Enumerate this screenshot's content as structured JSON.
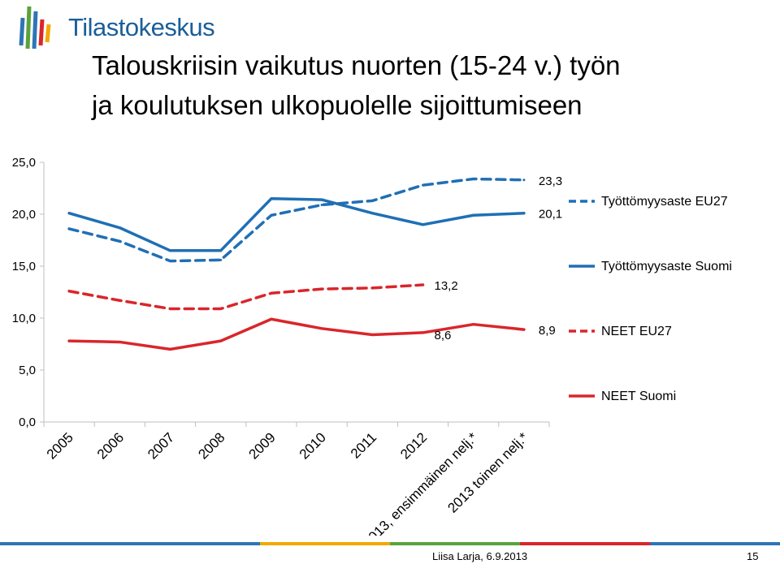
{
  "logo": {
    "text": "Tilastokeskus"
  },
  "title": {
    "line1": "Talouskriisin vaikutus nuorten (15-24 v.) työn",
    "line2": "ja koulutuksen ulkopuolelle sijoittumiseen"
  },
  "footer": {
    "author": "Liisa Larja, 6.9.2013",
    "page": "15"
  },
  "colors": {
    "blue": "#1f6fb5",
    "red": "#d9262b",
    "footer_bar": [
      "#2e75b6",
      "#2e75b6",
      "#f2a900",
      "#5aa33c",
      "#d9262b",
      "#2e75b6"
    ]
  },
  "chart_data": {
    "type": "line",
    "categories": [
      "2005",
      "2006",
      "2007",
      "2008",
      "2009",
      "2010",
      "2011",
      "2012",
      "2013, ensimmäinen nelj.*",
      "2013 toinen nelj.*"
    ],
    "ylim": [
      0,
      25
    ],
    "yticks": [
      "0,0",
      "5,0",
      "10,0",
      "15,0",
      "20,0",
      "25,0"
    ],
    "grid": false,
    "legend_placement": "right",
    "series": [
      {
        "name": "Työttömyysaste EU27",
        "color": "#1f6fb5",
        "dash": true,
        "values": [
          18.6,
          17.4,
          15.5,
          15.6,
          19.9,
          20.9,
          21.3,
          22.8,
          23.4,
          23.3
        ],
        "end_label": "23,3"
      },
      {
        "name": "Työttömyysaste Suomi",
        "color": "#1f6fb5",
        "dash": false,
        "values": [
          20.1,
          18.7,
          16.5,
          16.5,
          21.5,
          21.4,
          20.1,
          19.0,
          19.9,
          20.1
        ],
        "end_label": "20,1"
      },
      {
        "name": "NEET EU27",
        "color": "#d9262b",
        "dash": true,
        "values": [
          12.6,
          11.7,
          10.9,
          10.9,
          12.4,
          12.8,
          12.9,
          13.2,
          null,
          null
        ],
        "end_label": "13,2"
      },
      {
        "name": "NEET Suomi",
        "color": "#d9262b",
        "dash": false,
        "values": [
          7.8,
          7.7,
          7.0,
          7.8,
          9.9,
          9.0,
          8.4,
          8.6,
          9.4,
          8.9
        ],
        "end_label": "8,9",
        "extra_label": "8,6"
      }
    ]
  }
}
